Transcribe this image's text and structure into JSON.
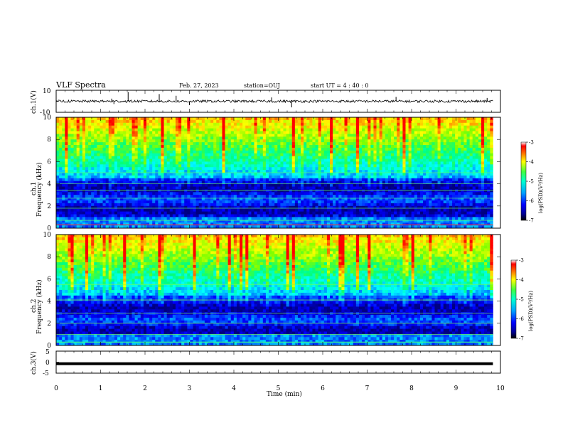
{
  "header": {
    "title": "VLF Spectra",
    "date": "Feb. 27, 2023",
    "station": "station=OUJ",
    "start": "start  UT =  4 : 40 : 0"
  },
  "chart_data": [
    {
      "type": "line",
      "name": "ch1-waveform",
      "ylabel": "ch.1(V)",
      "ylim": [
        -10,
        10
      ],
      "ytick_labels": [
        "10",
        "-10"
      ],
      "x_range_min": [
        0,
        9.83
      ],
      "baseline_v": 0.0,
      "spikes": [
        {
          "x": 1.62,
          "y": 8.5
        },
        {
          "x": 1.3,
          "y": -2.5
        },
        {
          "x": 1.25,
          "y": 2.4
        },
        {
          "x": 2.32,
          "y": 6.5
        },
        {
          "x": 2.7,
          "y": 5.0
        },
        {
          "x": 3.0,
          "y": -3.5
        },
        {
          "x": 5.3,
          "y": -5.5
        },
        {
          "x": 4.85,
          "y": 3.5
        },
        {
          "x": 7.65,
          "y": 4.0
        },
        {
          "x": 9.7,
          "y": 3.0
        }
      ]
    },
    {
      "type": "heatmap",
      "name": "ch1-spectrogram",
      "ylabel": "ch.1\nFrequency  (kHz)",
      "ylim": [
        0,
        10
      ],
      "ytick_labels": [
        "0",
        "2",
        "4",
        "6",
        "8",
        "10"
      ],
      "x_range_min": [
        0,
        9.83
      ],
      "colorbar": {
        "label": "log(PSD)(V²/Hz)",
        "range": [
          -7,
          -3
        ],
        "tick_labels": [
          "-3",
          "-4",
          "-5",
          "-6",
          "-7"
        ]
      }
    },
    {
      "type": "heatmap",
      "name": "ch2-spectrogram",
      "ylabel": "ch.2\nFrequency  (kHz)",
      "ylim": [
        0,
        10
      ],
      "ytick_labels": [
        "0",
        "2",
        "4",
        "6",
        "8",
        "10"
      ],
      "x_range_min": [
        0,
        9.83
      ],
      "colorbar": {
        "label": "log(PSD)(V²/Hz)",
        "range": [
          -7,
          -3
        ],
        "tick_labels": [
          "-3",
          "-4",
          "-5",
          "-6",
          "-7"
        ]
      }
    },
    {
      "type": "line",
      "name": "ch3-waveform",
      "ylabel": "ch.3(V)",
      "ylim": [
        -5,
        5
      ],
      "ytick_labels": [
        "5",
        "0",
        "-5"
      ],
      "x_range_min": [
        0,
        9.83
      ],
      "baseline_v": -0.7
    }
  ],
  "xaxis": {
    "label": "Time  (min)",
    "xlim": [
      0,
      10
    ],
    "tick_labels": [
      "0",
      "1",
      "2",
      "3",
      "4",
      "5",
      "6",
      "7",
      "8",
      "9",
      "10"
    ]
  },
  "colormap": [
    "#000080",
    "#0000ff",
    "#0080ff",
    "#00ffff",
    "#00ff80",
    "#80ff00",
    "#ffff00",
    "#ff8000",
    "#ff0000",
    "#ffffff"
  ]
}
